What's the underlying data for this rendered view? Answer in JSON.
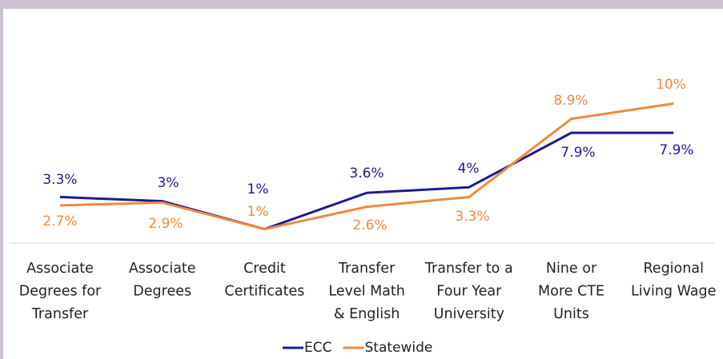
{
  "chart_data": {
    "type": "line",
    "categories": [
      [
        "Associate",
        "Degrees for",
        "Transfer"
      ],
      [
        "Associate",
        "Degrees"
      ],
      [
        "Credit",
        "Certificates"
      ],
      [
        "Transfer",
        "Level Math",
        "& English"
      ],
      [
        "Transfer to a",
        "Four Year",
        "University"
      ],
      [
        "Nine or",
        "More CTE",
        "Units"
      ],
      [
        "Regional",
        "Living Wage"
      ]
    ],
    "series": [
      {
        "name": "ECC",
        "color": "#1e1a8f",
        "values": [
          3.3,
          3,
          1,
          3.6,
          4,
          7.9,
          7.9
        ],
        "value_labels": [
          "3.3%",
          "3%",
          "1%",
          "3.6%",
          "4%",
          "7.9%",
          "7.9%"
        ]
      },
      {
        "name": "Statewide",
        "color": "#ee8a3e",
        "values": [
          2.7,
          2.9,
          1,
          2.6,
          3.3,
          8.9,
          10
        ],
        "value_labels": [
          "2.7%",
          "2.9%",
          "1%",
          "2.6%",
          "3.3%",
          "8.9%",
          "10%"
        ]
      }
    ],
    "legend": "bottom"
  }
}
